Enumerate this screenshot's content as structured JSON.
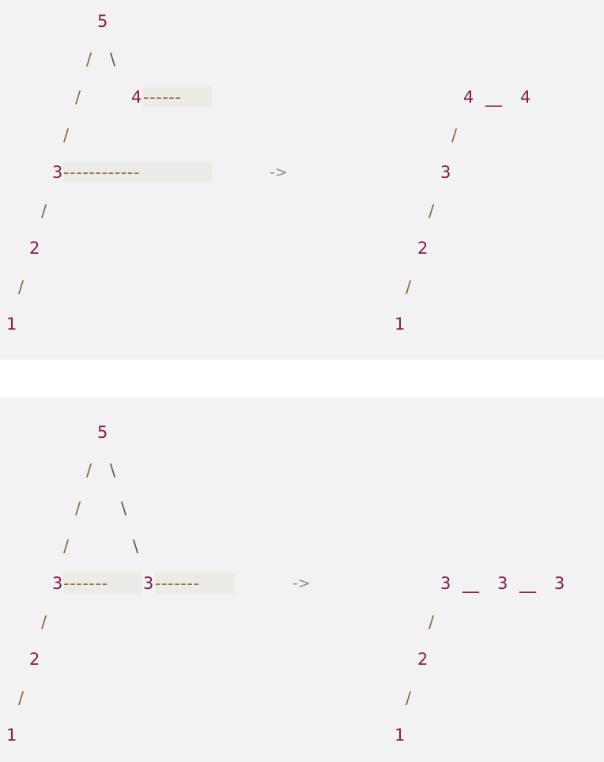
{
  "diagram1": {
    "left": {
      "n5": "5",
      "slash1": "/",
      "bslash1": "\\",
      "slash2": "/",
      "n4": "4",
      "dashes4": "------",
      "slash3": "/",
      "n3": "3",
      "dashes3": "------------",
      "slash4": "/",
      "n2": "2",
      "slash5": "/",
      "n1": "1"
    },
    "arrow": "->",
    "right": {
      "n4a": "4",
      "sep": "__",
      "n4b": "4",
      "slash1": "/",
      "n3": "3",
      "slash2": "/",
      "n2": "2",
      "slash3": "/",
      "n1": "1"
    }
  },
  "diagram2": {
    "left": {
      "n5": "5",
      "slash1": "/",
      "bslash1": "\\",
      "slash2": "/",
      "bslash2": "\\",
      "slash3": "/",
      "bslash3": "\\",
      "n3a": "3",
      "dashes_a": "-------",
      "n3b": "3",
      "dashes_b": "-------",
      "slash4": "/",
      "n2": "2",
      "slash5": "/",
      "n1": "1"
    },
    "arrow": "->",
    "right": {
      "n3a": "3",
      "sep1": "__",
      "n3b": "3",
      "sep2": "__",
      "n3c": "3",
      "slash1": "/",
      "n2": "2",
      "slash2": "/",
      "n1": "1"
    }
  }
}
